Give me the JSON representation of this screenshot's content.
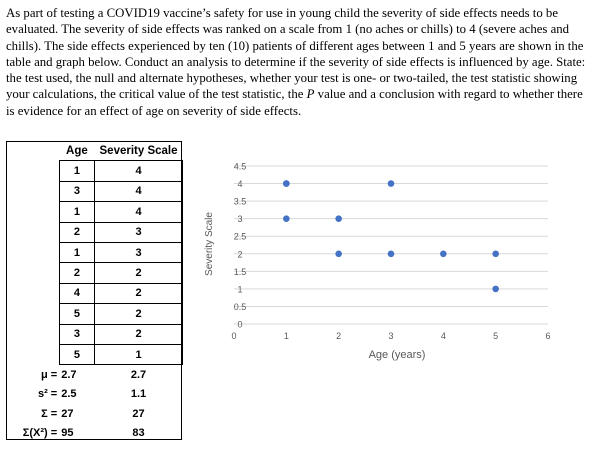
{
  "question": {
    "p1": "As part of testing a COVID19 vaccine’s safety for use in young child the severity of side effects needs to be evaluated. The severity of side effects was ranked on a scale from 1 (no aches or chills) to 4 (severe aches and chills). The side effects experienced by ten (10) patients of different ages between 1 and 5 years are shown in the table and graph below. Conduct an analysis to determine if the severity of side effects is influenced by age. State: the test used, the null and alternate hypotheses, whether your test is one- or two-tailed, the test statistic showing your calculations, the critical value of the test statistic, the ",
    "italic": "P",
    "p2": " value and a conclusion with regard to whether there is evidence for an effect of age on severity of side effects."
  },
  "table": {
    "headers": [
      "Age",
      "Severity Scale"
    ],
    "rows": [
      [
        "1",
        "4"
      ],
      [
        "3",
        "4"
      ],
      [
        "1",
        "4"
      ],
      [
        "2",
        "3"
      ],
      [
        "1",
        "3"
      ],
      [
        "2",
        "2"
      ],
      [
        "4",
        "2"
      ],
      [
        "5",
        "2"
      ],
      [
        "3",
        "2"
      ],
      [
        "5",
        "1"
      ]
    ],
    "stats": [
      {
        "label": "μ =",
        "age": "2.7",
        "sev": "2.7"
      },
      {
        "label": "s² =",
        "age": "2.5",
        "sev": "1.1"
      },
      {
        "label": "Σ =",
        "age": "27",
        "sev": "27"
      },
      {
        "label": "Σ(X²) =",
        "age": "95",
        "sev": "83"
      }
    ]
  },
  "chart_data": {
    "type": "scatter",
    "xlabel": "Age (years)",
    "ylabel": "Severity Scale",
    "xlim": [
      0,
      6
    ],
    "ylim": [
      0,
      4.5
    ],
    "xticks": [
      "0",
      "1",
      "2",
      "3",
      "4",
      "5",
      "6"
    ],
    "yticks": [
      "0",
      "0.5",
      "1",
      "1.5",
      "2",
      "2.5",
      "3",
      "3.5",
      "4",
      "4.5"
    ],
    "grid": "horizontal",
    "marker_color": "#4472C4",
    "points": [
      {
        "x": 1,
        "y": 4
      },
      {
        "x": 3,
        "y": 4
      },
      {
        "x": 1,
        "y": 4
      },
      {
        "x": 2,
        "y": 3
      },
      {
        "x": 1,
        "y": 3
      },
      {
        "x": 2,
        "y": 2
      },
      {
        "x": 4,
        "y": 2
      },
      {
        "x": 5,
        "y": 2
      },
      {
        "x": 3,
        "y": 2
      },
      {
        "x": 5,
        "y": 1
      }
    ]
  }
}
